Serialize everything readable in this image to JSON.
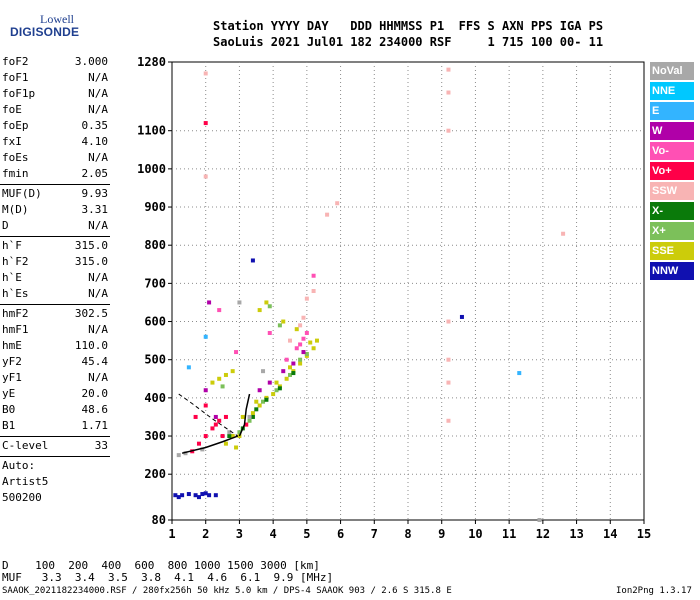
{
  "logo": {
    "top": "Lowell",
    "bottom": "DIGISONDE"
  },
  "header": {
    "line1": "Station YYYY DAY   DDD HHMMSS P1  FFS S AXN PPS IGA PS",
    "line2": "SaoLuis 2021 Jul01 182 234000 RSF     1 715 100 00- 11"
  },
  "params": [
    {
      "name": "foF2",
      "value": "3.000"
    },
    {
      "name": "foF1",
      "value": "N/A"
    },
    {
      "name": "foF1p",
      "value": "N/A"
    },
    {
      "name": "foE",
      "value": "N/A"
    },
    {
      "name": "foEp",
      "value": "0.35"
    },
    {
      "name": "fxI",
      "value": "4.10"
    },
    {
      "name": "foEs",
      "value": "N/A"
    },
    {
      "name": "fmin",
      "value": "2.05"
    },
    {
      "sep": true
    },
    {
      "name": "MUF(D)",
      "value": "9.93"
    },
    {
      "name": "M(D)",
      "value": "3.31"
    },
    {
      "name": "D",
      "value": "N/A"
    },
    {
      "sep": true
    },
    {
      "name": "h`F",
      "value": "315.0"
    },
    {
      "name": "h`F2",
      "value": "315.0"
    },
    {
      "name": "h`E",
      "value": "N/A"
    },
    {
      "name": "h`Es",
      "value": "N/A"
    },
    {
      "sep": true
    },
    {
      "name": "hmF2",
      "value": "302.5"
    },
    {
      "name": "hmF1",
      "value": "N/A"
    },
    {
      "name": "hmE",
      "value": "110.0"
    },
    {
      "name": "yF2",
      "value": "45.4"
    },
    {
      "name": "yF1",
      "value": "N/A"
    },
    {
      "name": "yE",
      "value": "20.0"
    },
    {
      "name": "B0",
      "value": "48.6"
    },
    {
      "name": "B1",
      "value": "1.71"
    },
    {
      "sep": true
    },
    {
      "name": "C-level",
      "value": "33"
    },
    {
      "sep": true
    }
  ],
  "auto": {
    "line1": "Auto:",
    "line2": "Artist5",
    "line3": "500200"
  },
  "legend": [
    {
      "label": "NoVal",
      "color": "#a8a8a8"
    },
    {
      "label": "NNE",
      "color": "#00c8ff"
    },
    {
      "label": "E",
      "color": "#33b4ff"
    },
    {
      "label": "W",
      "color": "#b000a8"
    },
    {
      "label": "Vo-",
      "color": "#ff50b4"
    },
    {
      "label": "Vo+",
      "color": "#ff0048"
    },
    {
      "label": "SSW",
      "color": "#f8b4b4"
    },
    {
      "label": "X-",
      "color": "#0a7a0a"
    },
    {
      "label": "X+",
      "color": "#7cc05a"
    },
    {
      "label": "SSE",
      "color": "#cccc0a"
    },
    {
      "label": "NNW",
      "color": "#1010b0"
    }
  ],
  "muf_table": {
    "row1": "D    100  200  400  600  800 1000 1500 3000 [km]",
    "row2": "MUF   3.3  3.4  3.5  3.8  4.1  4.6  6.1  9.9 [MHz]"
  },
  "footer": {
    "left": "SAAOK_2021182234000.RSF / 280fx256h 50 kHz 5.0 km / DPS-4 SAAOK 903 / 2.6 S 315.8 E",
    "right": "Ion2Png 1.3.17"
  },
  "chart_data": {
    "type": "scatter",
    "xlim": [
      1,
      15
    ],
    "ylim": [
      80,
      1280
    ],
    "xticks": [
      1,
      2,
      3,
      4,
      5,
      6,
      7,
      8,
      9,
      10,
      11,
      12,
      13,
      14,
      15
    ],
    "yticks": [
      80,
      200,
      300,
      400,
      500,
      600,
      700,
      800,
      900,
      1000,
      1100,
      1280
    ],
    "grid": true,
    "series": [
      {
        "color": "#cccc0a",
        "points": [
          [
            3.0,
            300
          ],
          [
            3.2,
            330
          ],
          [
            3.4,
            360
          ],
          [
            3.6,
            380
          ],
          [
            3.8,
            400
          ],
          [
            4.0,
            410
          ],
          [
            4.2,
            430
          ],
          [
            4.4,
            450
          ],
          [
            4.6,
            470
          ],
          [
            4.8,
            490
          ],
          [
            5.0,
            510
          ],
          [
            5.2,
            530
          ],
          [
            5.3,
            550
          ],
          [
            2.6,
            280
          ],
          [
            2.8,
            300
          ],
          [
            3.1,
            350
          ],
          [
            3.5,
            390
          ],
          [
            4.1,
            440
          ],
          [
            4.5,
            480
          ],
          [
            4.9,
            520
          ],
          [
            5.1,
            545
          ],
          [
            2.2,
            440
          ],
          [
            2.4,
            450
          ],
          [
            2.6,
            460
          ],
          [
            2.8,
            470
          ],
          [
            3.6,
            630
          ],
          [
            3.8,
            650
          ],
          [
            4.3,
            600
          ],
          [
            4.7,
            580
          ],
          [
            2.9,
            270
          ]
        ]
      },
      {
        "color": "#7cc05a",
        "points": [
          [
            3.0,
            310
          ],
          [
            3.3,
            340
          ],
          [
            3.7,
            390
          ],
          [
            4.1,
            420
          ],
          [
            4.5,
            460
          ],
          [
            4.8,
            500
          ],
          [
            5.0,
            515
          ],
          [
            2.5,
            430
          ],
          [
            3.9,
            640
          ],
          [
            4.2,
            590
          ]
        ]
      },
      {
        "color": "#0a7a0a",
        "points": [
          [
            3.1,
            320
          ],
          [
            3.4,
            350
          ],
          [
            3.8,
            395
          ],
          [
            4.2,
            425
          ],
          [
            4.6,
            465
          ],
          [
            2.7,
            300
          ],
          [
            3.5,
            370
          ]
        ]
      },
      {
        "color": "#b000a8",
        "points": [
          [
            3.6,
            420
          ],
          [
            3.9,
            440
          ],
          [
            4.3,
            470
          ],
          [
            4.6,
            490
          ],
          [
            4.9,
            520
          ],
          [
            2.3,
            350
          ],
          [
            2.0,
            420
          ],
          [
            2.1,
            650
          ]
        ]
      },
      {
        "color": "#ff50b4",
        "points": [
          [
            4.4,
            500
          ],
          [
            4.7,
            530
          ],
          [
            4.9,
            555
          ],
          [
            5.0,
            570
          ],
          [
            4.8,
            540
          ],
          [
            2.9,
            520
          ],
          [
            3.9,
            570
          ],
          [
            2.4,
            630
          ],
          [
            5.2,
            720
          ]
        ]
      },
      {
        "color": "#ff0048",
        "points": [
          [
            1.6,
            260
          ],
          [
            1.8,
            280
          ],
          [
            2.0,
            300
          ],
          [
            2.2,
            320
          ],
          [
            2.4,
            340
          ],
          [
            2.6,
            350
          ],
          [
            1.7,
            350
          ],
          [
            2.0,
            380
          ],
          [
            2.3,
            330
          ],
          [
            2.5,
            300
          ],
          [
            3.2,
            330
          ],
          [
            2.0,
            1120
          ]
        ]
      },
      {
        "color": "#f8b4b4",
        "points": [
          [
            4.5,
            550
          ],
          [
            4.8,
            590
          ],
          [
            4.9,
            610
          ],
          [
            5.0,
            660
          ],
          [
            5.2,
            680
          ],
          [
            9.2,
            1260
          ],
          [
            9.2,
            1200
          ],
          [
            9.2,
            1100
          ],
          [
            9.2,
            600
          ],
          [
            9.2,
            500
          ],
          [
            9.2,
            440
          ],
          [
            9.2,
            340
          ],
          [
            2.0,
            1250
          ],
          [
            2.0,
            980
          ],
          [
            12.6,
            830
          ],
          [
            5.6,
            880
          ],
          [
            5.9,
            910
          ]
        ]
      },
      {
        "color": "#33b4ff",
        "points": [
          [
            1.5,
            480
          ],
          [
            2.0,
            560
          ],
          [
            11.3,
            465
          ]
        ]
      },
      {
        "color": "#1010b0",
        "points": [
          [
            1.1,
            145
          ],
          [
            1.3,
            145
          ],
          [
            1.5,
            148
          ],
          [
            1.7,
            145
          ],
          [
            1.9,
            148
          ],
          [
            2.1,
            145
          ],
          [
            2.3,
            145
          ],
          [
            1.2,
            140
          ],
          [
            1.8,
            140
          ],
          [
            2.0,
            150
          ],
          [
            3.4,
            760
          ],
          [
            9.6,
            612
          ]
        ]
      },
      {
        "color": "#a8a8a8",
        "points": [
          [
            1.2,
            250
          ],
          [
            1.4,
            255
          ],
          [
            1.9,
            265
          ],
          [
            2.7,
            310
          ],
          [
            3.3,
            350
          ],
          [
            3.7,
            470
          ],
          [
            3.0,
            650
          ],
          [
            11.9,
            80
          ]
        ]
      }
    ],
    "traces": [
      {
        "color": "#000000",
        "points": [
          [
            1.3,
            255
          ],
          [
            2.0,
            270
          ],
          [
            2.5,
            285
          ],
          [
            2.95,
            300
          ]
        ]
      },
      {
        "color": "#000000",
        "points": [
          [
            3.0,
            300
          ],
          [
            3.15,
            330
          ],
          [
            3.2,
            370
          ],
          [
            3.3,
            410
          ]
        ]
      }
    ],
    "dashed_traces": [
      {
        "color": "#000000",
        "points": [
          [
            1.2,
            410
          ],
          [
            1.6,
            385
          ],
          [
            2.2,
            345
          ],
          [
            2.95,
            300
          ]
        ]
      }
    ]
  }
}
